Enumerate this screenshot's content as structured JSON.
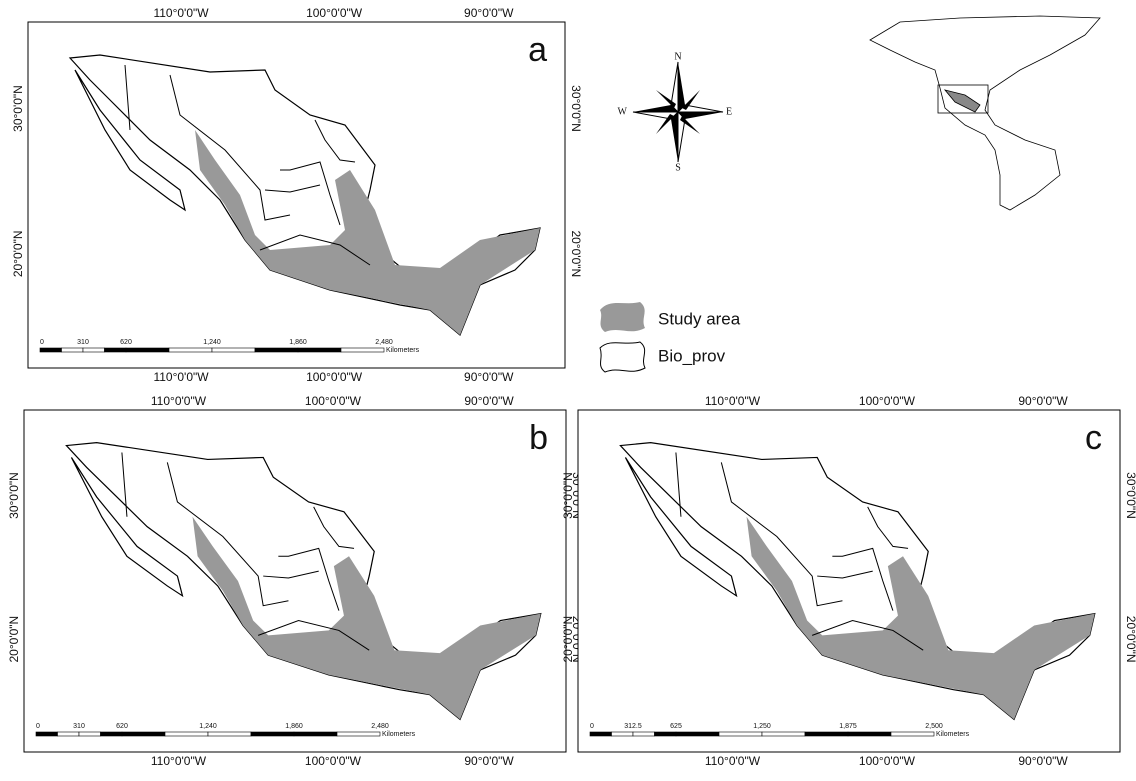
{
  "panels": [
    {
      "label": "a",
      "top_labels": [
        "110°0'0\"W",
        "100°0'0\"W",
        "90°0'0\"W"
      ],
      "bottom_labels": [
        "110°0'0\"W",
        "100°0'0\"W",
        "90°0'0\"W"
      ],
      "left_labels": [
        "30°0'0\"N",
        "20°0'0\"N"
      ],
      "right_labels": [
        "30°0'0\"N",
        "20°0'0\"N"
      ],
      "scale": {
        "ticks": [
          "0",
          "310",
          "620",
          "1,240",
          "1,860",
          "2,480"
        ],
        "unit": "Kilometers"
      }
    },
    {
      "label": "b",
      "top_labels": [
        "110°0'0\"W",
        "100°0'0\"W",
        "90°0'0\"W"
      ],
      "bottom_labels": [
        "110°0'0\"W",
        "100°0'0\"W",
        "90°0'0\"W"
      ],
      "left_labels": [
        "30°0'0\"N",
        "20°0'0\"N"
      ],
      "right_labels": [
        "30°0'0\"N",
        "20°0'0\"N"
      ],
      "scale": {
        "ticks": [
          "0",
          "310",
          "620",
          "1,240",
          "1,860",
          "2,480"
        ],
        "unit": "Kilometers"
      }
    },
    {
      "label": "c",
      "top_labels": [
        "110°0'0\"W",
        "100°0'0\"W",
        "90°0'0\"W"
      ],
      "bottom_labels": [
        "110°0'0\"W",
        "100°0'0\"W",
        "90°0'0\"W"
      ],
      "left_labels": [
        "30°0'0\"N",
        "20°0'0\"N"
      ],
      "right_labels": [
        "30°0'0\"N",
        "20°0'0\"N"
      ],
      "scale": {
        "ticks": [
          "0",
          "312.5",
          "625",
          "1,250",
          "1,875",
          "2,500"
        ],
        "unit": "Kilometers"
      }
    }
  ],
  "compass": {
    "n": "N",
    "s": "S",
    "e": "E",
    "w": "W"
  },
  "legend": [
    {
      "label": "Study area"
    },
    {
      "label": "Bio_prov"
    }
  ]
}
